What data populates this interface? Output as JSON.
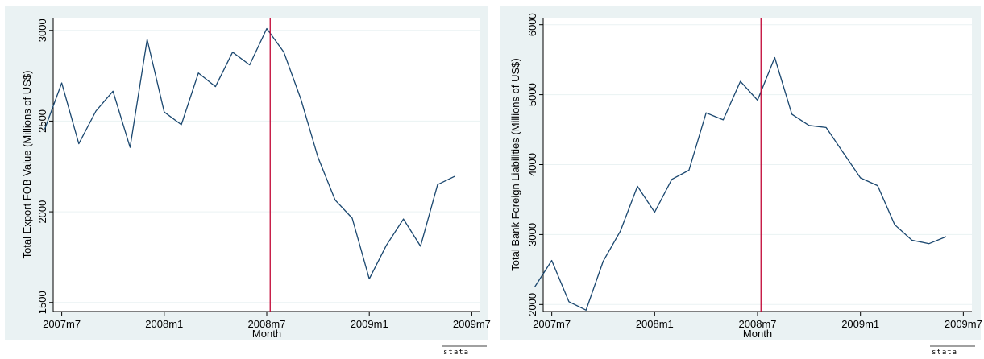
{
  "colors": {
    "outer_bg": "#eaf2f3",
    "plot_bg": "#ffffff",
    "line": "#1a476f",
    "vline": "#c10534",
    "grid": "#eaf2f3",
    "axis": "#000000"
  },
  "branding": {
    "stata_logo": "stata"
  },
  "chart_data": [
    {
      "type": "line",
      "xlabel": "Month",
      "ylabel": "Total Export FOB Value (Millions of US$)",
      "x_ticks": [
        {
          "x": 0,
          "label": "2007m7"
        },
        {
          "x": 6,
          "label": "2008m1"
        },
        {
          "x": 12,
          "label": "2008m7"
        },
        {
          "x": 18,
          "label": "2009m1"
        },
        {
          "x": 24,
          "label": "2009m7"
        }
      ],
      "xlim": [
        -0.5,
        24.5
      ],
      "ylim": [
        1450,
        3070
      ],
      "y_ticks": [
        1500,
        2000,
        2500,
        3000
      ],
      "vline_x": 12.2,
      "grid": true,
      "series": [
        {
          "x": [
            -1,
            0,
            1,
            2,
            3,
            4,
            5,
            6,
            7,
            8,
            9,
            10,
            11,
            12,
            13,
            14,
            15,
            16,
            17,
            18,
            19,
            20,
            21,
            22,
            23
          ],
          "values": [
            2455,
            2710,
            2375,
            2555,
            2665,
            2355,
            2950,
            2550,
            2480,
            2765,
            2690,
            2880,
            2810,
            3010,
            2880,
            2620,
            2300,
            2065,
            1965,
            1630,
            1815,
            1960,
            1810,
            2150,
            2195
          ]
        }
      ]
    },
    {
      "type": "line",
      "xlabel": "Month",
      "ylabel": "Total Bank Foreign Liabilities (Millions of US$)",
      "x_ticks": [
        {
          "x": 0,
          "label": "2007m7"
        },
        {
          "x": 6,
          "label": "2008m1"
        },
        {
          "x": 12,
          "label": "2008m7"
        },
        {
          "x": 18,
          "label": "2009m1"
        },
        {
          "x": 24,
          "label": "2009m7"
        }
      ],
      "xlim": [
        -0.5,
        24.5
      ],
      "ylim": [
        1900,
        6100
      ],
      "y_ticks": [
        2000,
        3000,
        4000,
        5000,
        6000
      ],
      "vline_x": 12.2,
      "grid": true,
      "series": [
        {
          "x": [
            -1,
            0,
            1,
            2,
            3,
            4,
            5,
            6,
            7,
            8,
            9,
            10,
            11,
            12,
            13,
            14,
            15,
            16,
            17,
            18,
            19,
            20,
            21,
            22,
            23
          ],
          "values": [
            2250,
            2630,
            2040,
            1920,
            2620,
            3050,
            3690,
            3320,
            3790,
            3920,
            4740,
            4640,
            5190,
            4920,
            5530,
            4720,
            4560,
            4530,
            4170,
            3810,
            3700,
            3140,
            2920,
            2870,
            2970
          ]
        }
      ]
    }
  ]
}
